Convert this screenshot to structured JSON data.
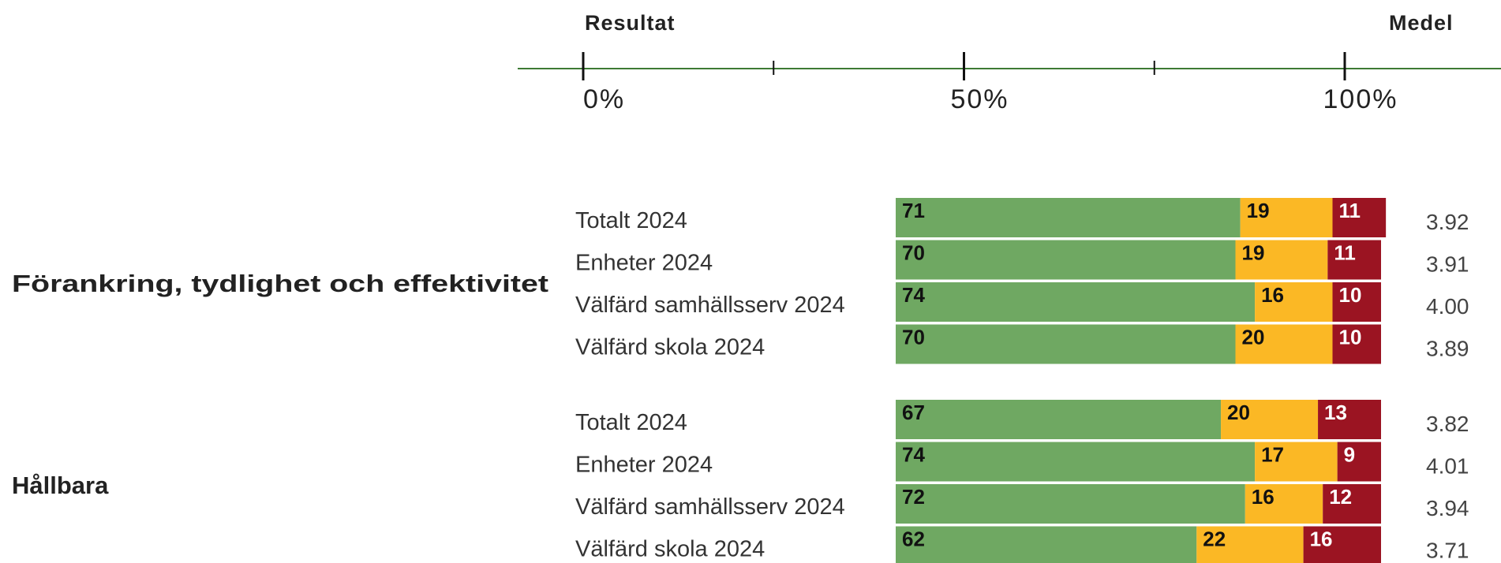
{
  "chart_data": {
    "type": "stacked_bar",
    "axis_title": "Resultat",
    "mean_title": "Medel",
    "xlim": [
      0,
      100
    ],
    "xticks": [
      {
        "value": 0,
        "label": "0%"
      },
      {
        "value": 50,
        "label": "50%"
      },
      {
        "value": 100,
        "label": "100%"
      }
    ],
    "minor_xticks": [
      25,
      75
    ],
    "segment_colors": [
      "#6fa862",
      "#fbb825",
      "#9b1422"
    ],
    "label_colors": [
      "#111111",
      "#111111",
      "#ffffff"
    ],
    "axis_color": "#3d7a34",
    "groups": [
      {
        "label": "Förankring, tydlighet och effektivitet",
        "rows": [
          {
            "label": "Totalt 2024",
            "values": [
              71,
              19,
              11
            ],
            "mean": 3.92
          },
          {
            "label": "Enheter 2024",
            "values": [
              70,
              19,
              11
            ],
            "mean": 3.91
          },
          {
            "label": "Välfärd samhällsserv 2024",
            "values": [
              74,
              16,
              10
            ],
            "mean": 4,
            "mean_label": "4.00"
          },
          {
            "label": "Välfärd skola 2024",
            "values": [
              70,
              20,
              10
            ],
            "mean": 3.89
          }
        ]
      },
      {
        "label": "Hållbara",
        "rows": [
          {
            "label": "Totalt 2024",
            "values": [
              67,
              20,
              13
            ],
            "mean": 3.82
          },
          {
            "label": "Enheter 2024",
            "values": [
              74,
              17,
              9
            ],
            "mean": 4.01
          },
          {
            "label": "Välfärd samhällsserv 2024",
            "values": [
              72,
              16,
              12
            ],
            "mean": 3.94
          },
          {
            "label": "Välfärd skola 2024",
            "values": [
              62,
              22,
              16
            ],
            "mean": 3.71
          }
        ]
      }
    ]
  }
}
